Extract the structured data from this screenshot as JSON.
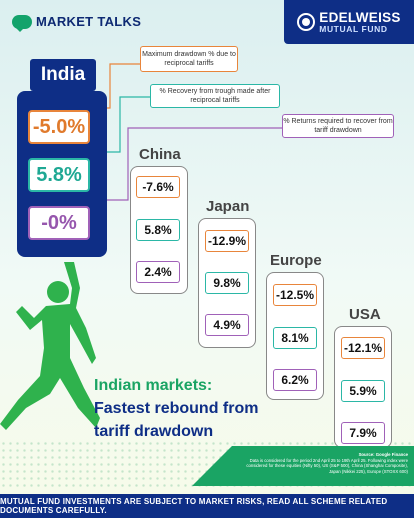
{
  "header": {
    "badge_label": "MARKET TALKS",
    "brand_name": "EDELWEISS",
    "brand_sub": "MUTUAL FUND"
  },
  "colors": {
    "navy": "#0e2e86",
    "orange": "#e8853b",
    "teal": "#2bb7a6",
    "purple": "#a061b8",
    "green": "#1aa464",
    "runner": "#2fb24d"
  },
  "legend": {
    "drawdown": "Maximum drawdown % due to reciprocal tariffs",
    "recovery": "% Recovery from trough made after reciprocal tariffs",
    "required": "% Returns required to recover from tariff drawdown"
  },
  "countries": [
    {
      "name": "India",
      "drawdown": "-5.0%",
      "recovery": "5.8%",
      "required": "-0%"
    },
    {
      "name": "China",
      "drawdown": "-7.6%",
      "recovery": "5.8%",
      "required": "2.4%"
    },
    {
      "name": "Japan",
      "drawdown": "-12.9%",
      "recovery": "9.8%",
      "required": "4.9%"
    },
    {
      "name": "Europe",
      "drawdown": "-12.5%",
      "recovery": "8.1%",
      "required": "6.2%"
    },
    {
      "name": "USA",
      "drawdown": "-12.1%",
      "recovery": "5.9%",
      "required": "7.9%"
    }
  ],
  "headline": {
    "line1": "Indian markets:",
    "line2": "Fastest rebound from",
    "line3": "tariff drawdown"
  },
  "source": {
    "title": "Source: Google Finance",
    "body": "Data is considered for the period 2nd April 25 to 19th April 25. Following index were considered for these equities (Nifty 50), US (S&P 500), China (Shanghai Composite), Japan (Nikkei 225), Europe (STOXX 600)"
  },
  "footer": "MUTUAL FUND INVESTMENTS ARE SUBJECT TO MARKET RISKS, READ ALL SCHEME RELATED DOCUMENTS CAREFULLY."
}
